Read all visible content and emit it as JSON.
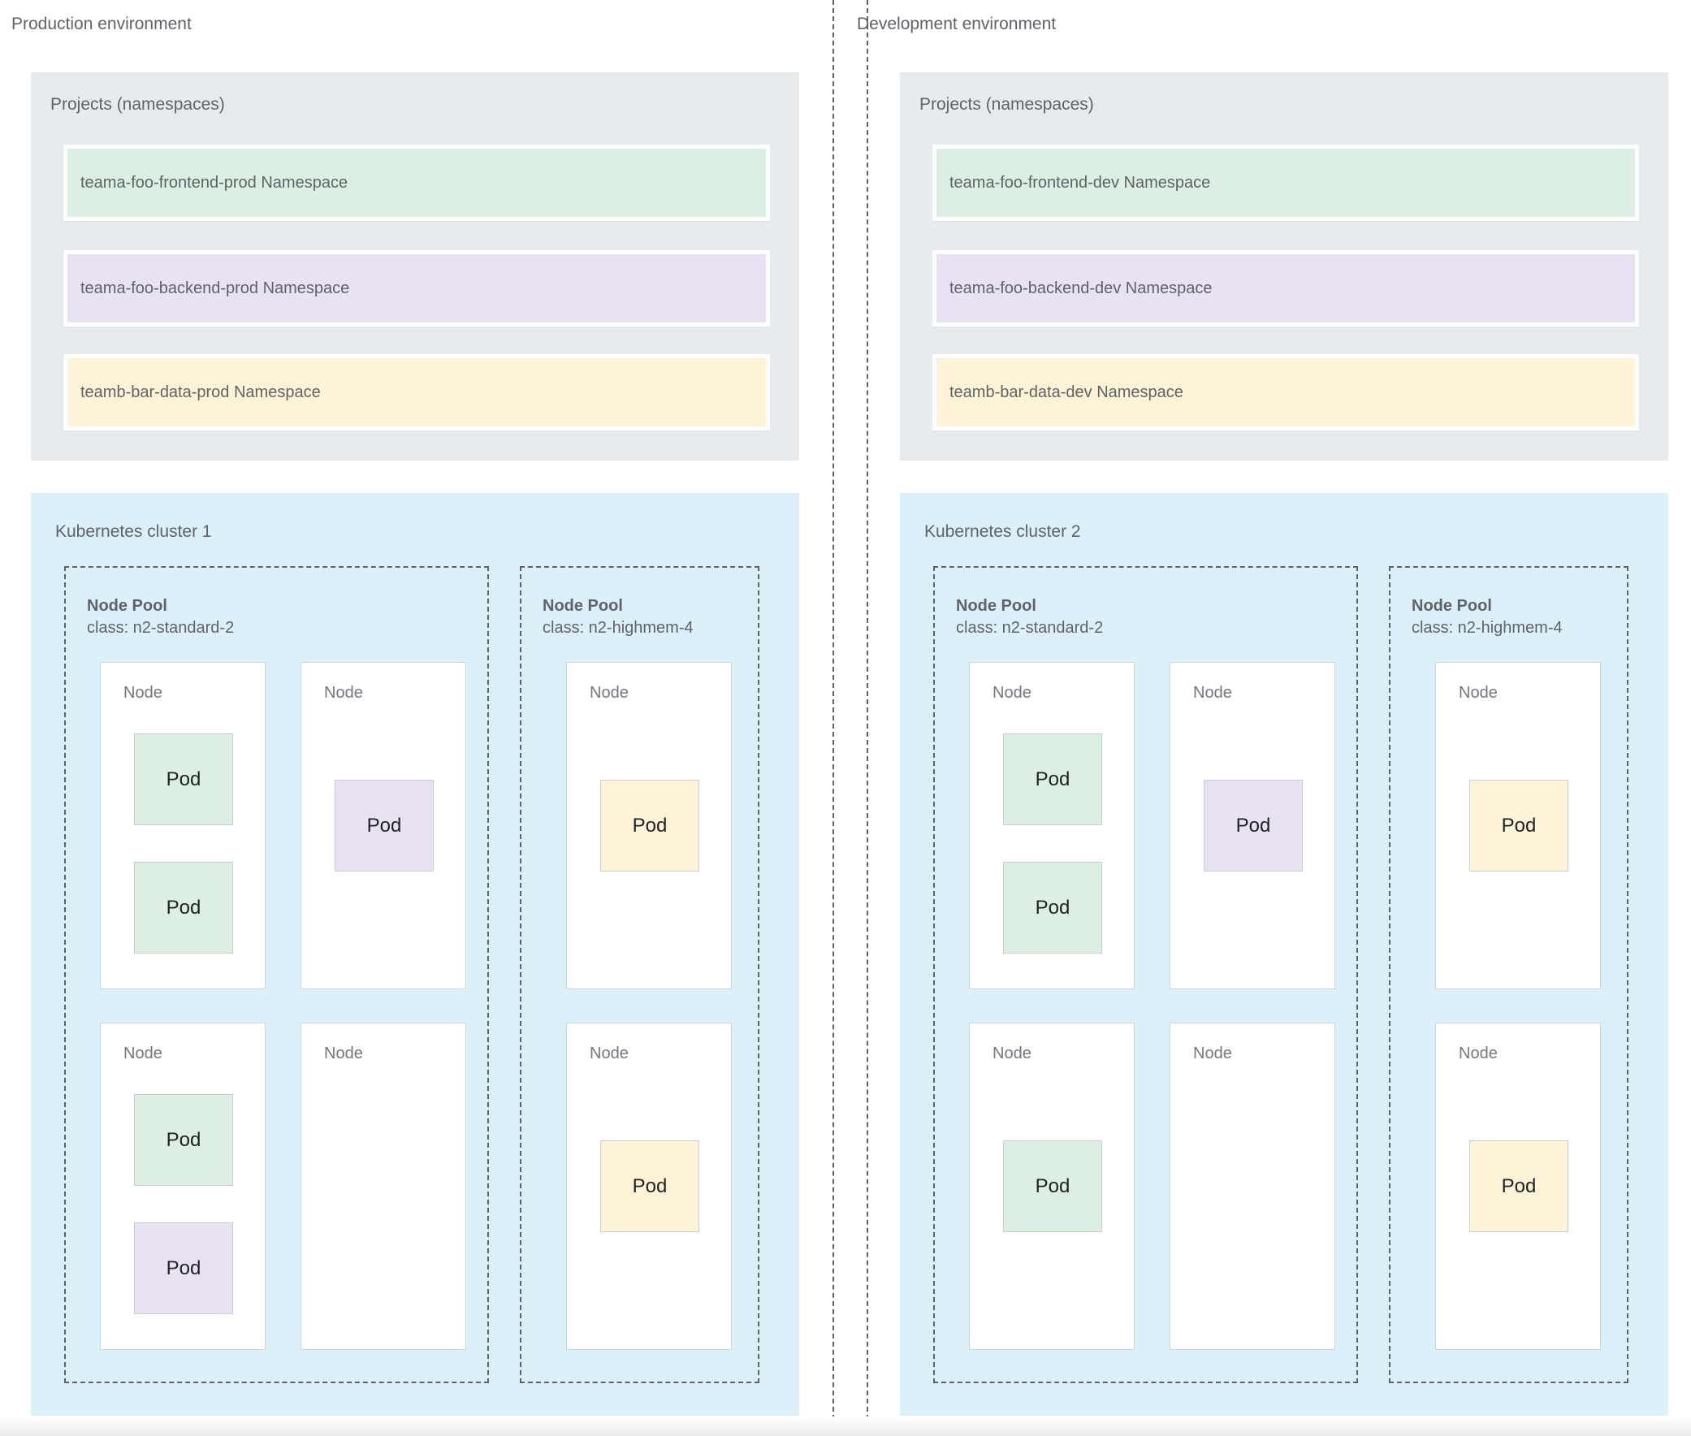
{
  "palette": {
    "panel_gray": "#e8ebee",
    "cluster_blue": "#dcf0fa",
    "frontend_green": "#ddeee3",
    "backend_purple": "#e8e2f3",
    "data_yellow": "#fdf3d6",
    "label_gray": "#5f6368"
  },
  "environments": [
    {
      "title": "Production environment",
      "projects": {
        "label": "Projects (namespaces)",
        "namespaces": [
          {
            "label": "teama-foo-frontend-prod Namespace",
            "color": "#ddeee3"
          },
          {
            "label": "teama-foo-backend-prod Namespace",
            "color": "#e8e2f3"
          },
          {
            "label": "teamb-bar-data-prod Namespace",
            "color": "#fdf3d6"
          }
        ]
      },
      "cluster": {
        "label": "Kubernetes cluster 1",
        "node_pools": [
          {
            "title": "Node Pool",
            "class_line": "class: n2-standard-2",
            "nodes": [
              {
                "label": "Node",
                "pods": [
                  {
                    "label": "Pod",
                    "color": "#ddeee3",
                    "slot": "stack-top"
                  },
                  {
                    "label": "Pod",
                    "color": "#ddeee3",
                    "slot": "stack-bottom"
                  }
                ]
              },
              {
                "label": "Node",
                "pods": [
                  {
                    "label": "Pod",
                    "color": "#e8e2f3",
                    "slot": "single"
                  }
                ]
              },
              {
                "label": "Node",
                "pods": [
                  {
                    "label": "Pod",
                    "color": "#ddeee3",
                    "slot": "stack-top"
                  },
                  {
                    "label": "Pod",
                    "color": "#e8e2f3",
                    "slot": "stack-bottom"
                  }
                ]
              },
              {
                "label": "Node",
                "pods": []
              }
            ]
          },
          {
            "title": "Node Pool",
            "class_line": "class: n2-highmem-4",
            "nodes": [
              {
                "label": "Node",
                "pods": [
                  {
                    "label": "Pod",
                    "color": "#fdf3d6",
                    "slot": "single"
                  }
                ]
              },
              {
                "label": "Node",
                "pods": [
                  {
                    "label": "Pod",
                    "color": "#fdf3d6",
                    "slot": "single"
                  }
                ]
              }
            ]
          }
        ]
      }
    },
    {
      "title": "Development environment",
      "projects": {
        "label": "Projects (namespaces)",
        "namespaces": [
          {
            "label": "teama-foo-frontend-dev Namespace",
            "color": "#ddeee3"
          },
          {
            "label": "teama-foo-backend-dev Namespace",
            "color": "#e8e2f3"
          },
          {
            "label": "teamb-bar-data-dev Namespace",
            "color": "#fdf3d6"
          }
        ]
      },
      "cluster": {
        "label": "Kubernetes cluster 2",
        "node_pools": [
          {
            "title": "Node Pool",
            "class_line": "class: n2-standard-2",
            "nodes": [
              {
                "label": "Node",
                "pods": [
                  {
                    "label": "Pod",
                    "color": "#ddeee3",
                    "slot": "stack-top"
                  },
                  {
                    "label": "Pod",
                    "color": "#ddeee3",
                    "slot": "stack-bottom"
                  }
                ]
              },
              {
                "label": "Node",
                "pods": [
                  {
                    "label": "Pod",
                    "color": "#e8e2f3",
                    "slot": "single"
                  }
                ]
              },
              {
                "label": "Node",
                "pods": [
                  {
                    "label": "Pod",
                    "color": "#ddeee3",
                    "slot": "single"
                  }
                ]
              },
              {
                "label": "Node",
                "pods": []
              }
            ]
          },
          {
            "title": "Node Pool",
            "class_line": "class: n2-highmem-4",
            "nodes": [
              {
                "label": "Node",
                "pods": [
                  {
                    "label": "Pod",
                    "color": "#fdf3d6",
                    "slot": "single"
                  }
                ]
              },
              {
                "label": "Node",
                "pods": [
                  {
                    "label": "Pod",
                    "color": "#fdf3d6",
                    "slot": "single"
                  }
                ]
              }
            ]
          }
        ]
      }
    }
  ]
}
